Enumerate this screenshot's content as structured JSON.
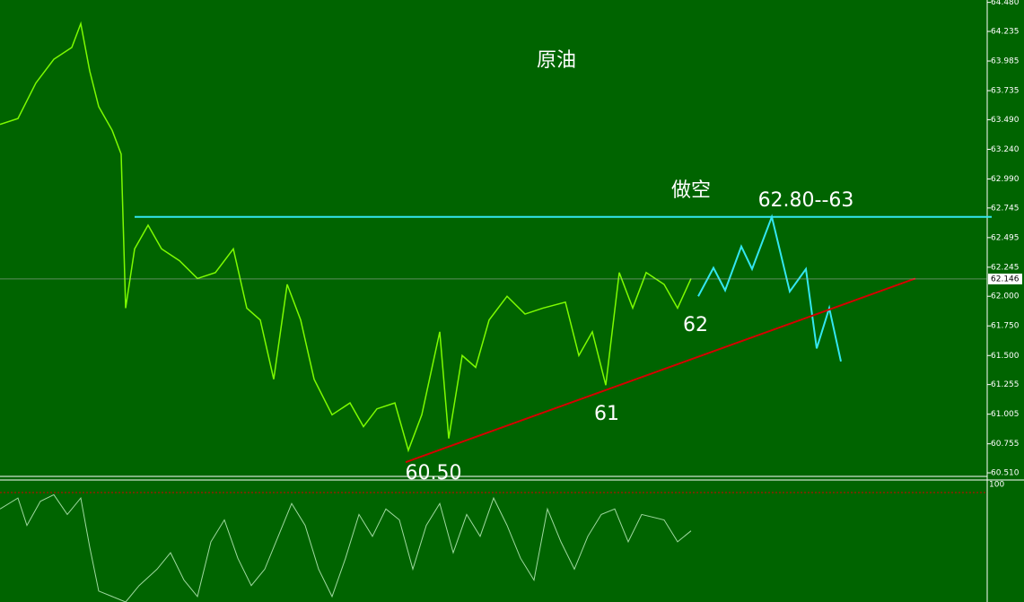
{
  "chart_data": {
    "type": "line",
    "title": "原油",
    "annotations": [
      "做空",
      "62.80--63",
      "62",
      "61",
      "60.50"
    ],
    "last_price": 62.146,
    "xlim": [
      0,
      220
    ],
    "ylim": [
      60.48,
      64.5
    ],
    "yticks": [
      {
        "value": 60.51,
        "label": "60.510"
      },
      60.755,
      61.005,
      61.255,
      {
        "value": 61.5,
        "label": "61.500"
      },
      {
        "value": 61.75,
        "label": "61.750"
      },
      {
        "value": 62,
        "label": "62.000"
      },
      62.245,
      62.495,
      62.745,
      {
        "value": 62.99,
        "label": "62.990"
      },
      {
        "value": 63.24,
        "label": "63.240"
      },
      {
        "value": 63.49,
        "label": "63.490"
      },
      63.735,
      63.985,
      64.235,
      {
        "value": 64.48,
        "label": "64.480"
      }
    ],
    "series": [
      {
        "color": "#7cfc00",
        "x": [
          0,
          4,
          8,
          12,
          16,
          18,
          20,
          22,
          25,
          27,
          28,
          30,
          33,
          36,
          40,
          44,
          48,
          52,
          55,
          58,
          61,
          64,
          67,
          70,
          74,
          78,
          81,
          84,
          88,
          91,
          94,
          98,
          100,
          103,
          106,
          109,
          113,
          117,
          121,
          126,
          129,
          132,
          135,
          138,
          141,
          144,
          148,
          151,
          154
        ],
        "values": [
          63.45,
          63.5,
          63.8,
          64.0,
          64.1,
          64.3,
          63.9,
          63.6,
          63.4,
          63.2,
          61.9,
          62.4,
          62.6,
          62.4,
          62.3,
          62.15,
          62.2,
          62.4,
          61.9,
          61.8,
          61.3,
          62.1,
          61.8,
          61.3,
          61.0,
          61.1,
          60.9,
          61.05,
          61.1,
          60.7,
          61.0,
          61.7,
          60.8,
          61.5,
          61.4,
          61.8,
          62.0,
          61.85,
          61.9,
          61.95,
          61.5,
          61.7,
          61.25,
          62.2,
          61.9,
          62.2,
          62.1,
          61.9,
          62.15
        ]
      },
      {
        "color": "#33e6f0",
        "x": [
          155.6,
          159,
          161.6,
          165.2,
          167.6,
          172,
          176,
          179.6,
          182,
          184.8,
          187.4
        ],
        "values": [
          62.0,
          62.24,
          62.05,
          62.42,
          62.23,
          62.67,
          62.04,
          62.23,
          61.56,
          61.9,
          61.45
        ]
      },
      {
        "color": "#d40000",
        "x": [
          90.4,
          204
        ],
        "values": [
          60.6,
          62.15
        ]
      },
      {
        "color": "#33e6f0",
        "x": [
          30,
          221
        ],
        "values": [
          62.67,
          62.67
        ]
      }
    ],
    "indicator": {
      "color": "#9fd9a0",
      "ylim": [
        0,
        100
      ],
      "yticks": [
        100
      ],
      "x": [
        0,
        4,
        6,
        9,
        12,
        15,
        18,
        20,
        22,
        25,
        28,
        31,
        35,
        38,
        41,
        44,
        47,
        50,
        53,
        56,
        59,
        62,
        65,
        68,
        71,
        74,
        77,
        80,
        83,
        86,
        89,
        92,
        95,
        98,
        101,
        104,
        107,
        110,
        113,
        116,
        119,
        122,
        125,
        128,
        131,
        134,
        137,
        140,
        143,
        148,
        151,
        154
      ],
      "values": [
        85,
        95,
        70,
        92,
        98,
        80,
        95,
        50,
        10,
        5,
        0,
        15,
        30,
        45,
        20,
        5,
        55,
        75,
        40,
        15,
        30,
        60,
        90,
        70,
        30,
        5,
        40,
        80,
        60,
        85,
        75,
        30,
        70,
        90,
        45,
        80,
        60,
        95,
        70,
        40,
        20,
        85,
        55,
        30,
        60,
        80,
        85,
        55,
        80,
        75,
        55,
        65
      ]
    }
  }
}
